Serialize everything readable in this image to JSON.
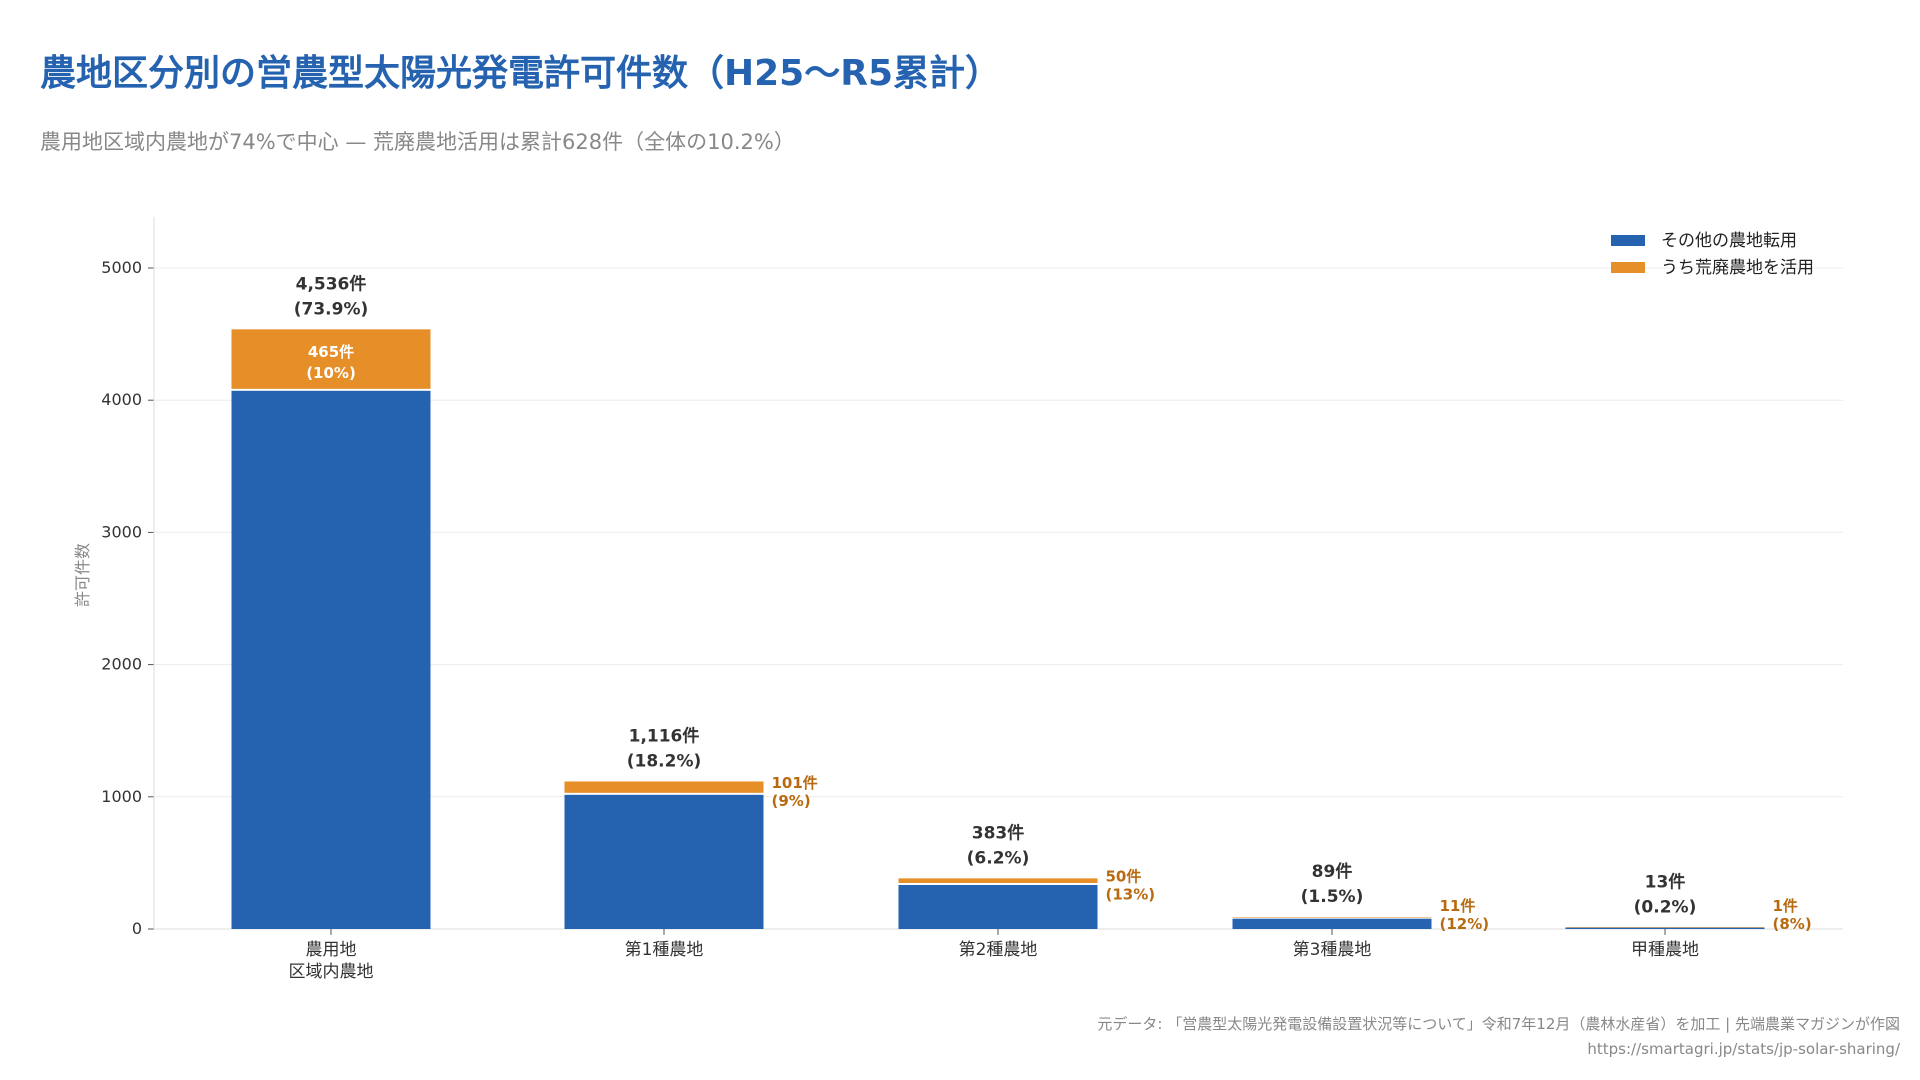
{
  "chart_data": {
    "type": "bar",
    "stacked": true,
    "title": "農地区分別の営農型太陽光発電許可件数（H25〜R5累計）",
    "subtitle": "農用地区域内農地が74%で中心 — 荒廃農地活用は累計628件（全体の10.2%）",
    "ylabel": "許可件数",
    "xlabel": "",
    "ylim": [
      0,
      5400
    ],
    "yticks": [
      0,
      1000,
      2000,
      3000,
      4000,
      5000
    ],
    "grid": true,
    "legend_position": "top-right",
    "categories": [
      "農用地\n区域内農地",
      "第1種農地",
      "第2種農地",
      "第3種農地",
      "甲種農地"
    ],
    "totals": [
      4536,
      1116,
      383,
      89,
      13
    ],
    "total_labels": [
      "4,536件",
      "1,116件",
      "383件",
      "89件",
      "13件"
    ],
    "share_labels": [
      "(73.9%)",
      "(18.2%)",
      "(6.2%)",
      "(1.5%)",
      "(0.2%)"
    ],
    "series": [
      {
        "name": "その他の農地転用",
        "color": "#2563b0",
        "values": [
          4071,
          1015,
          333,
          78,
          12
        ]
      },
      {
        "name": "うち荒廃農地を活用",
        "color": "#e68e27",
        "values": [
          465,
          101,
          50,
          11,
          1
        ],
        "labels": [
          "465件",
          "101件",
          "50件",
          "11件",
          "1件"
        ],
        "pct_labels": [
          "(10%)",
          "(9%)",
          "(13%)",
          "(12%)",
          "(8%)"
        ]
      }
    ]
  },
  "source": {
    "line1": "元データ: 「営農型太陽光発電設備設置状況等について」令和7年12月（農林水産省）を加工 | 先端農業マガジンが作図",
    "line2": "https://smartagri.jp/stats/jp-solar-sharing/"
  }
}
